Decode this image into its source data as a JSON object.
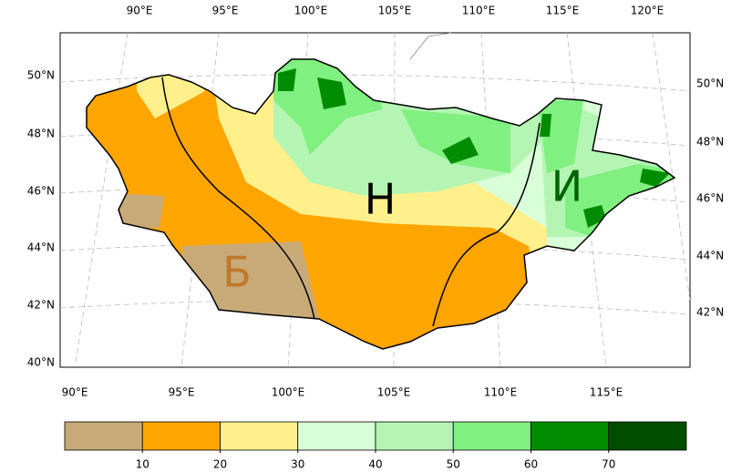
{
  "map": {
    "top_lon_labels": [
      "90°E",
      "95°E",
      "100°E",
      "105°E",
      "110°E",
      "115°E",
      "120°E"
    ],
    "bottom_lon_labels": [
      "90°E",
      "95°E",
      "100°E",
      "105°E",
      "110°E",
      "115°E"
    ],
    "left_lat_labels": [
      "50°N",
      "48°N",
      "46°N",
      "44°N",
      "42°N",
      "40°N"
    ],
    "right_lat_labels": [
      "50°N",
      "48°N",
      "46°N",
      "44°N",
      "42°N"
    ],
    "region_labels": [
      "Б",
      "Н",
      "И"
    ],
    "colorbar": {
      "colors": [
        "#c8aa78",
        "#ffa500",
        "#fff08c",
        "#d9ffd9",
        "#b4f5b4",
        "#80f080",
        "#008c00",
        "#004d00"
      ],
      "ticks": [
        10,
        20,
        30,
        40,
        50,
        60,
        70
      ]
    }
  }
}
